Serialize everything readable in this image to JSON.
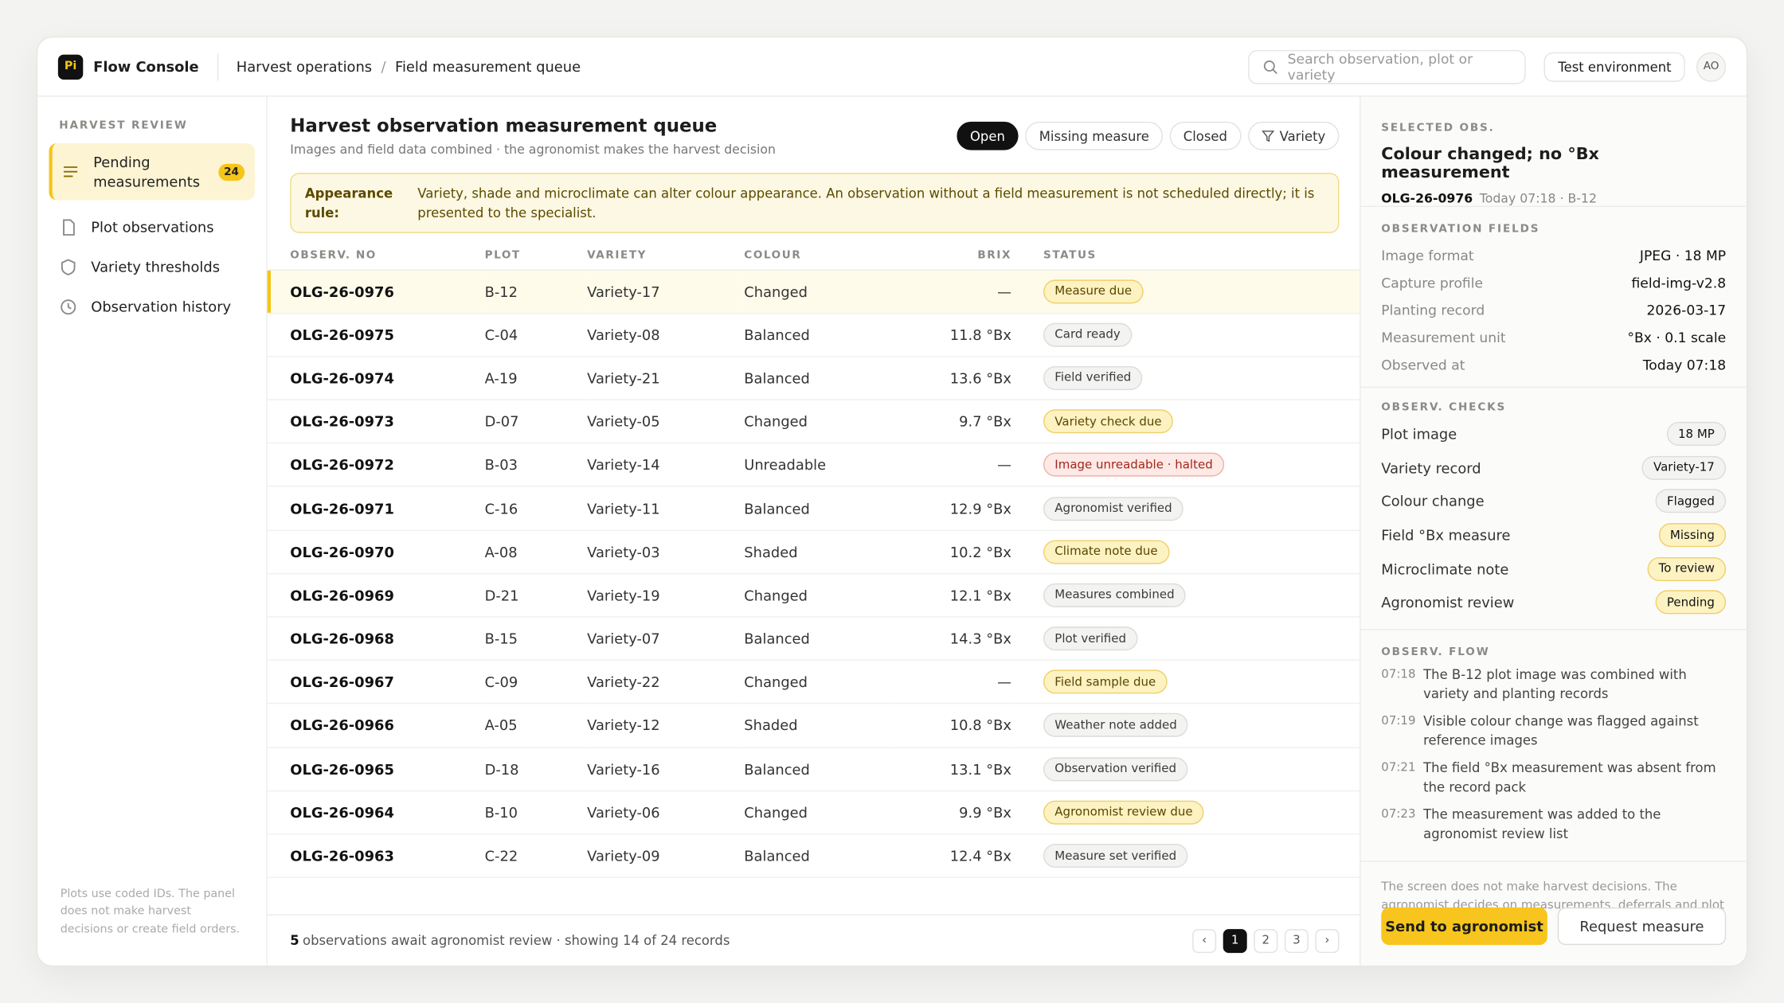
{
  "header": {
    "logo": "Pi",
    "app": "Flow Console",
    "breadcrumb": [
      "Harvest operations",
      "Field measurement queue"
    ],
    "separator": "/",
    "search_placeholder": "Search observation, plot or variety",
    "environment": "Test environment",
    "avatar": "AO"
  },
  "sidebar": {
    "section": "HARVEST REVIEW",
    "nav": [
      {
        "label": "Pending measurements",
        "badge": "24",
        "active": true
      },
      {
        "label": "Plot observations"
      },
      {
        "label": "Variety thresholds"
      },
      {
        "label": "Observation history"
      }
    ],
    "footnote": "Plots use coded IDs. The panel does not make harvest decisions or create field orders."
  },
  "main": {
    "title": "Harvest observation measurement queue",
    "subtitle": "Images and field data combined · the agronomist makes the harvest decision",
    "filters": [
      {
        "label": "Open",
        "active": true
      },
      {
        "label": "Missing measure"
      },
      {
        "label": "Closed"
      },
      {
        "label": "Variety"
      }
    ],
    "rule_label": "Appearance rule:",
    "rule_text": "Variety, shade and microclimate can alter colour appearance. An observation without a field measurement is not scheduled directly; it is presented to the specialist.",
    "table": {
      "columns": [
        "OBSERV. NO",
        "PLOT",
        "VARIETY",
        "COLOUR",
        "BRIX",
        "STATUS"
      ],
      "rows": [
        {
          "cells": [
            "OLG-26-0976",
            "B-12",
            "Variety-17",
            "Changed",
            "—"
          ],
          "status": "Measure due",
          "tone": "due",
          "selected": true
        },
        {
          "cells": [
            "OLG-26-0975",
            "C-04",
            "Variety-08",
            "Balanced",
            "11.8 °Bx"
          ],
          "status": "Card ready",
          "tone": "neutral"
        },
        {
          "cells": [
            "OLG-26-0974",
            "A-19",
            "Variety-21",
            "Balanced",
            "13.6 °Bx"
          ],
          "status": "Field verified",
          "tone": "neutral"
        },
        {
          "cells": [
            "OLG-26-0973",
            "D-07",
            "Variety-05",
            "Changed",
            "9.7 °Bx"
          ],
          "status": "Variety check due",
          "tone": "due"
        },
        {
          "cells": [
            "OLG-26-0972",
            "B-03",
            "Variety-14",
            "Unreadable",
            "—"
          ],
          "status": "Image unreadable · halted",
          "tone": "alert"
        },
        {
          "cells": [
            "OLG-26-0971",
            "C-16",
            "Variety-11",
            "Balanced",
            "12.9 °Bx"
          ],
          "status": "Agronomist verified",
          "tone": "neutral"
        },
        {
          "cells": [
            "OLG-26-0970",
            "A-08",
            "Variety-03",
            "Shaded",
            "10.2 °Bx"
          ],
          "status": "Climate note due",
          "tone": "due"
        },
        {
          "cells": [
            "OLG-26-0969",
            "D-21",
            "Variety-19",
            "Changed",
            "12.1 °Bx"
          ],
          "status": "Measures combined",
          "tone": "neutral"
        },
        {
          "cells": [
            "OLG-26-0968",
            "B-15",
            "Variety-07",
            "Balanced",
            "14.3 °Bx"
          ],
          "status": "Plot verified",
          "tone": "neutral"
        },
        {
          "cells": [
            "OLG-26-0967",
            "C-09",
            "Variety-22",
            "Changed",
            "—"
          ],
          "status": "Field sample due",
          "tone": "due"
        },
        {
          "cells": [
            "OLG-26-0966",
            "A-05",
            "Variety-12",
            "Shaded",
            "10.8 °Bx"
          ],
          "status": "Weather note added",
          "tone": "neutral"
        },
        {
          "cells": [
            "OLG-26-0965",
            "D-18",
            "Variety-16",
            "Balanced",
            "13.1 °Bx"
          ],
          "status": "Observation verified",
          "tone": "neutral"
        },
        {
          "cells": [
            "OLG-26-0964",
            "B-10",
            "Variety-06",
            "Changed",
            "9.9 °Bx"
          ],
          "status": "Agronomist review due",
          "tone": "due"
        },
        {
          "cells": [
            "OLG-26-0963",
            "C-22",
            "Variety-09",
            "Balanced",
            "12.4 °Bx"
          ],
          "status": "Measure set verified",
          "tone": "neutral"
        }
      ]
    },
    "footer": {
      "count": "5",
      "text": "observations await agronomist review · showing 14 of 24 records",
      "prev": "‹",
      "pages": [
        "1",
        "2",
        "3"
      ],
      "next": "›"
    }
  },
  "detail": {
    "label": "SELECTED OBS.",
    "title": "Colour changed; no °Bx measurement",
    "id": "OLG-26-0976",
    "meta": "Today 07:18 · B-12",
    "fields_label": "OBSERVATION FIELDS",
    "fields": [
      [
        "Image format",
        "JPEG · 18 MP"
      ],
      [
        "Capture profile",
        "field-img-v2.8"
      ],
      [
        "Planting record",
        "2026-03-17"
      ],
      [
        "Measurement unit",
        "°Bx · 0.1 scale"
      ],
      [
        "Observed at",
        "Today 07:18"
      ]
    ],
    "checks_label": "OBSERV. CHECKS",
    "checks": [
      {
        "label": "Plot image",
        "value": "18 MP",
        "tone": "neutral"
      },
      {
        "label": "Variety record",
        "value": "Variety-17",
        "tone": "neutral"
      },
      {
        "label": "Colour change",
        "value": "Flagged",
        "tone": "neutral"
      },
      {
        "label": "Field °Bx measure",
        "value": "Missing",
        "tone": "due"
      },
      {
        "label": "Microclimate note",
        "value": "To review",
        "tone": "due"
      },
      {
        "label": "Agronomist review",
        "value": "Pending",
        "tone": "due"
      }
    ],
    "flow_label": "OBSERV. FLOW",
    "flow": [
      [
        "07:18",
        "The B-12 plot image was combined with variety and planting records"
      ],
      [
        "07:19",
        "Visible colour change was flagged against reference images"
      ],
      [
        "07:21",
        "The field °Bx measurement was absent from the record pack"
      ],
      [
        "07:23",
        "The measurement was added to the agronomist review list"
      ]
    ],
    "disclaimer": "The screen does not make harvest decisions. The agronomist decides on measurements, deferrals and plot plan approval.",
    "primary": "Send to agronomist",
    "secondary": "Request measure"
  }
}
